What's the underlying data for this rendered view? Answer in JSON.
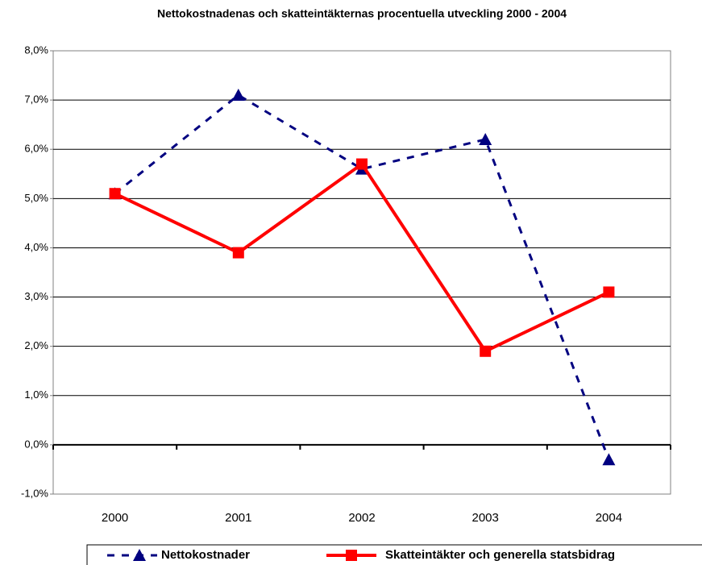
{
  "chart_data": {
    "type": "line",
    "title": "Nettokostnadenas och skatteintäkternas procentuella utveckling 2000 - 2004",
    "categories": [
      "2000",
      "2001",
      "2002",
      "2003",
      "2004"
    ],
    "series": [
      {
        "name": "Nettokostnader",
        "color": "#000080",
        "values": [
          5.1,
          7.1,
          5.6,
          6.2,
          -0.3
        ]
      },
      {
        "name": "Skatteintäkter och generella statsbidrag",
        "color": "#ff0000",
        "values": [
          5.1,
          3.9,
          5.7,
          1.9,
          3.1
        ]
      }
    ],
    "ylim": [
      -1,
      8
    ],
    "yticks": [
      {
        "value": -1,
        "label": "-1,0%"
      },
      {
        "value": 0,
        "label": "0,0%"
      },
      {
        "value": 1,
        "label": "1,0%"
      },
      {
        "value": 2,
        "label": "2,0%"
      },
      {
        "value": 3,
        "label": "3,0%"
      },
      {
        "value": 4,
        "label": "4,0%"
      },
      {
        "value": 5,
        "label": "5,0%"
      },
      {
        "value": 6,
        "label": "6,0%"
      },
      {
        "value": 7,
        "label": "7,0%"
      },
      {
        "value": 8,
        "label": "8,0%"
      }
    ],
    "grid": true,
    "legend": "bottom"
  }
}
